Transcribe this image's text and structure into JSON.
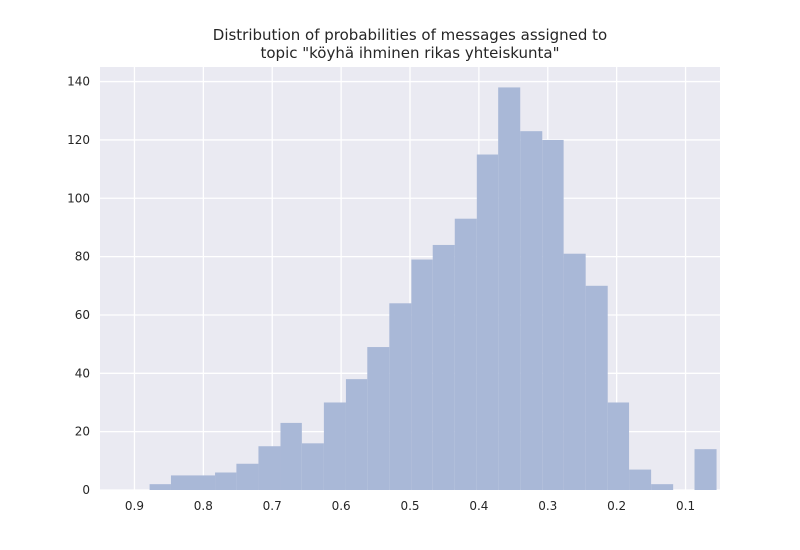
{
  "chart_data": {
    "type": "histogram",
    "title": [
      "Distribution of probabilities of messages assigned to",
      "topic \"köyhä ihminen rikas yhteiskunta\""
    ],
    "bins": [
      0.055,
      0.087,
      0.118,
      0.15,
      0.182,
      0.213,
      0.245,
      0.277,
      0.308,
      0.34,
      0.372,
      0.403,
      0.435,
      0.467,
      0.498,
      0.53,
      0.562,
      0.593,
      0.625,
      0.657,
      0.688,
      0.72,
      0.752,
      0.783,
      0.815,
      0.847,
      0.878
    ],
    "values": [
      14,
      0,
      2,
      7,
      30,
      70,
      81,
      120,
      123,
      138,
      115,
      93,
      84,
      79,
      64,
      49,
      38,
      30,
      16,
      23,
      15,
      9,
      6,
      5,
      5,
      2
    ],
    "color": "#a9b8d7",
    "xlim": [
      0.95,
      0.05
    ],
    "xticks": [
      0.9,
      0.8,
      0.7,
      0.6,
      0.5,
      0.4,
      0.3,
      0.2,
      0.1
    ],
    "ylim": [
      0,
      145
    ],
    "yticks": [
      0,
      20,
      40,
      60,
      80,
      100,
      120,
      140
    ],
    "grid": true
  }
}
